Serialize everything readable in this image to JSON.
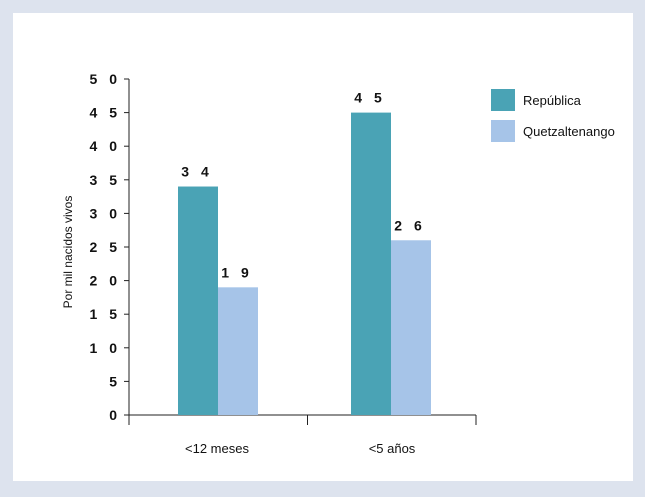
{
  "chart_data": {
    "type": "bar",
    "title": "",
    "xlabel": "",
    "ylabel": "Por mil nacidos vivos",
    "categories": [
      "<12 meses",
      "<5 años"
    ],
    "series": [
      {
        "name": "República",
        "values": [
          34,
          45
        ],
        "labels": [
          "3 4",
          "4 5"
        ],
        "color": "#4aa3b5"
      },
      {
        "name": "Quetzaltenango",
        "values": [
          19,
          26
        ],
        "labels": [
          "1 9",
          "2 6"
        ],
        "color": "#a6c4e8"
      }
    ],
    "ylim": [
      0,
      50
    ],
    "yticks": [
      0,
      5,
      10,
      15,
      20,
      25,
      30,
      35,
      40,
      45,
      50
    ],
    "ytick_labels": [
      "0",
      "5",
      "1 0",
      "1 5",
      "2 0",
      "2 5",
      "3 0",
      "3 5",
      "4 0",
      "4 5",
      "5 0"
    ],
    "grid": false,
    "legend_position": "top-right"
  }
}
